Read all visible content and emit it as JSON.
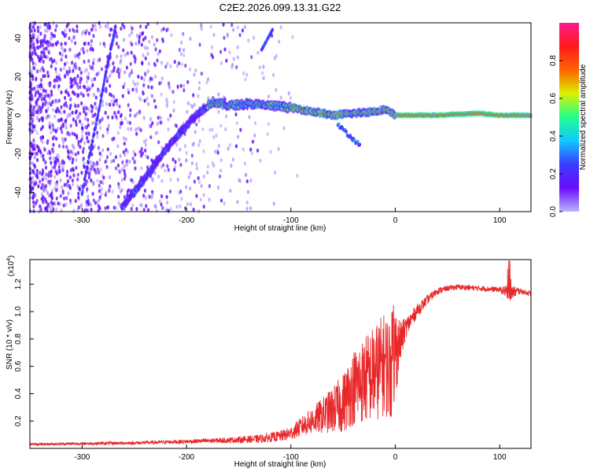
{
  "page_title": "C2E2.2026.099.13.31.G22",
  "chart_data": [
    {
      "type": "heatmap",
      "title": "C2E2.2026.099.13.31.G22",
      "xlabel": "Height of straight line (km)",
      "ylabel": "Frequency (Hz)",
      "xlim": [
        -350,
        130
      ],
      "ylim": [
        -50,
        48
      ],
      "xticks": [
        -300,
        -200,
        -100,
        0,
        100
      ],
      "yticks": [
        -40,
        -20,
        0,
        20,
        40
      ],
      "colorbar": {
        "label": "Normalized spectral amplitude",
        "range": [
          0.0,
          1.0
        ],
        "ticks": [
          0.0,
          0.2,
          0.4,
          0.6,
          0.8
        ],
        "colors": [
          "#b7b5ff",
          "#6a0dfb",
          "#3a3bff",
          "#10c8ff",
          "#20ff90",
          "#d8f200",
          "#ff6400",
          "#ff1a1a",
          "#ff1a90"
        ]
      },
      "features": {
        "main_trace": [
          [
            -262,
            -48
          ],
          [
            -240,
            -33
          ],
          [
            -220,
            -18
          ],
          [
            -200,
            -5
          ],
          [
            -185,
            3
          ],
          [
            -175,
            7
          ],
          [
            -160,
            5
          ],
          [
            -140,
            6
          ],
          [
            -120,
            5
          ],
          [
            -100,
            4
          ],
          [
            -80,
            2
          ],
          [
            -60,
            0
          ],
          [
            -40,
            1
          ],
          [
            -20,
            2
          ],
          [
            -10,
            3
          ],
          [
            0,
            0
          ],
          [
            40,
            0
          ],
          [
            80,
            1
          ],
          [
            100,
            0
          ],
          [
            130,
            0
          ]
        ],
        "steep_trace": [
          [
            -300,
            -40
          ],
          [
            -285,
            0
          ],
          [
            -275,
            28
          ],
          [
            -268,
            45
          ]
        ]
      }
    },
    {
      "type": "line",
      "xlabel": "Height of straight line (km)",
      "ylabel": "SNR (10 * v/v)",
      "y_scale_label": "(x10",
      "y_scale_exponent": "4",
      "y_scale": 10000,
      "xlim": [
        -350,
        130
      ],
      "ylim": [
        0,
        1.38
      ],
      "xticks": [
        -300,
        -200,
        -100,
        0,
        100
      ],
      "yticks": [
        0.2,
        0.4,
        0.6,
        0.8,
        1.0,
        1.2
      ],
      "color": "#e8282a",
      "envelope": {
        "x": [
          -350,
          -300,
          -250,
          -200,
          -160,
          -130,
          -110,
          -100,
          -90,
          -80,
          -70,
          -60,
          -50,
          -40,
          -30,
          -20,
          -10,
          -5,
          0,
          5,
          10,
          20,
          30,
          40,
          50,
          60,
          80,
          100,
          110,
          120,
          130
        ],
        "y": [
          0.03,
          0.035,
          0.04,
          0.05,
          0.06,
          0.07,
          0.09,
          0.11,
          0.16,
          0.2,
          0.24,
          0.28,
          0.33,
          0.45,
          0.5,
          0.55,
          0.62,
          0.58,
          0.7,
          0.78,
          0.88,
          1.0,
          1.08,
          1.15,
          1.17,
          1.18,
          1.17,
          1.16,
          1.14,
          1.15,
          1.13
        ],
        "noise": [
          0.008,
          0.01,
          0.012,
          0.015,
          0.02,
          0.03,
          0.04,
          0.05,
          0.07,
          0.1,
          0.13,
          0.17,
          0.22,
          0.28,
          0.32,
          0.36,
          0.38,
          0.4,
          0.35,
          0.15,
          0.08,
          0.05,
          0.035,
          0.025,
          0.02,
          0.02,
          0.02,
          0.02,
          0.06,
          0.02,
          0.02
        ]
      }
    }
  ]
}
